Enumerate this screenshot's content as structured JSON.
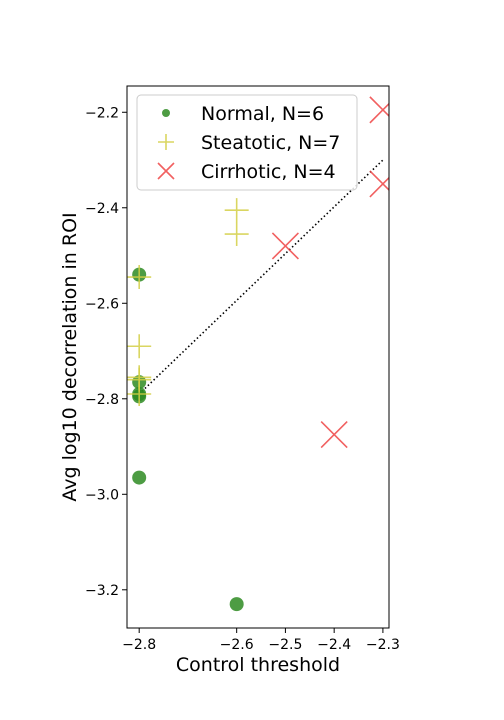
{
  "chart_data": {
    "type": "scatter",
    "xlabel": "Control threshold",
    "ylabel": "Avg log10 decorrelation in ROI",
    "xlim": [
      -2.825,
      -2.2875
    ],
    "ylim": [
      -3.28,
      -2.145
    ],
    "xticks": [
      -2.8,
      -2.6,
      -2.5,
      -2.4,
      -2.3
    ],
    "xtick_labels": [
      "−2.8",
      "−2.6",
      "−2.5",
      "−2.4",
      "−2.3"
    ],
    "yticks": [
      -3.2,
      -3.0,
      -2.8,
      -2.6,
      -2.4,
      -2.2
    ],
    "ytick_labels": [
      "−3.2",
      "−3.0",
      "−2.8",
      "−2.6",
      "−2.4",
      "−2.2"
    ],
    "legend_position": "top-left",
    "series": [
      {
        "name": "Normal, N=6",
        "marker": "circle",
        "color": "#2e8b22",
        "points": [
          {
            "x": -2.8,
            "y": -2.54
          },
          {
            "x": -2.8,
            "y": -2.765
          },
          {
            "x": -2.8,
            "y": -2.795
          },
          {
            "x": -2.8,
            "y": -2.79
          },
          {
            "x": -2.8,
            "y": -2.965
          },
          {
            "x": -2.6,
            "y": -3.23
          }
        ]
      },
      {
        "name": "Steatotic, N=7",
        "marker": "plus",
        "color": "#d4cf45",
        "points": [
          {
            "x": -2.8,
            "y": -2.545
          },
          {
            "x": -2.8,
            "y": -2.69
          },
          {
            "x": -2.8,
            "y": -2.755
          },
          {
            "x": -2.8,
            "y": -2.76
          },
          {
            "x": -2.8,
            "y": -2.79
          },
          {
            "x": -2.6,
            "y": -2.405
          },
          {
            "x": -2.6,
            "y": -2.455
          }
        ]
      },
      {
        "name": "Cirrhotic, N=4",
        "marker": "x",
        "color": "#ee4444",
        "points": [
          {
            "x": -2.3,
            "y": -2.195
          },
          {
            "x": -2.3,
            "y": -2.35
          },
          {
            "x": -2.5,
            "y": -2.48
          },
          {
            "x": -2.4,
            "y": -2.875
          }
        ]
      }
    ],
    "trend_line": {
      "style": "dotted",
      "color": "#000000",
      "points": [
        {
          "x": -2.8,
          "y": -2.79
        },
        {
          "x": -2.3,
          "y": -2.3
        }
      ]
    }
  }
}
